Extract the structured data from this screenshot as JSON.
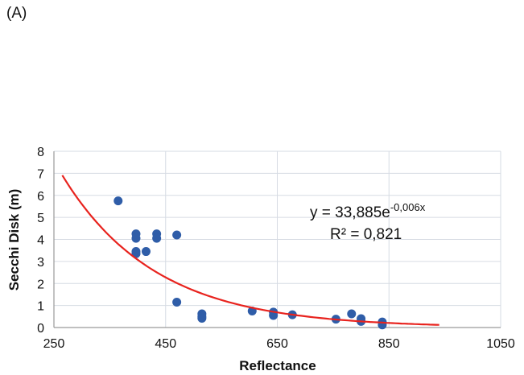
{
  "panel_label": "(A)",
  "chart_data": {
    "type": "scatter",
    "xlabel": "Reflectance",
    "ylabel": "Secchi  Disk (m)",
    "xlim": [
      250,
      1050
    ],
    "ylim": [
      0,
      8
    ],
    "xticks": [
      250,
      450,
      650,
      850,
      1050
    ],
    "yticks": [
      0,
      1,
      2,
      3,
      4,
      5,
      6,
      7,
      8
    ],
    "grid": true,
    "colors": {
      "points": "#2f5da8",
      "trendline": "#e8231e",
      "grid": "#d6dbe3"
    },
    "points": [
      {
        "x": 365,
        "y": 5.75
      },
      {
        "x": 397,
        "y": 4.25
      },
      {
        "x": 397,
        "y": 4.05
      },
      {
        "x": 397,
        "y": 3.45
      },
      {
        "x": 397,
        "y": 3.35
      },
      {
        "x": 415,
        "y": 3.45
      },
      {
        "x": 434,
        "y": 4.25
      },
      {
        "x": 434,
        "y": 4.05
      },
      {
        "x": 470,
        "y": 4.2
      },
      {
        "x": 470,
        "y": 1.15
      },
      {
        "x": 515,
        "y": 0.62
      },
      {
        "x": 515,
        "y": 0.5
      },
      {
        "x": 515,
        "y": 0.42
      },
      {
        "x": 605,
        "y": 0.75
      },
      {
        "x": 643,
        "y": 0.7
      },
      {
        "x": 643,
        "y": 0.55
      },
      {
        "x": 677,
        "y": 0.58
      },
      {
        "x": 755,
        "y": 0.38
      },
      {
        "x": 783,
        "y": 0.62
      },
      {
        "x": 800,
        "y": 0.4
      },
      {
        "x": 800,
        "y": 0.28
      },
      {
        "x": 838,
        "y": 0.25
      },
      {
        "x": 838,
        "y": 0.12
      }
    ],
    "trendline": {
      "type": "exponential",
      "a": 33.885,
      "b": -0.006,
      "x_range": [
        265,
        940
      ],
      "equation_prefix": "y = 33,885e",
      "equation_exponent": "-0,006x",
      "r2_label": "R² = 0,821"
    }
  }
}
